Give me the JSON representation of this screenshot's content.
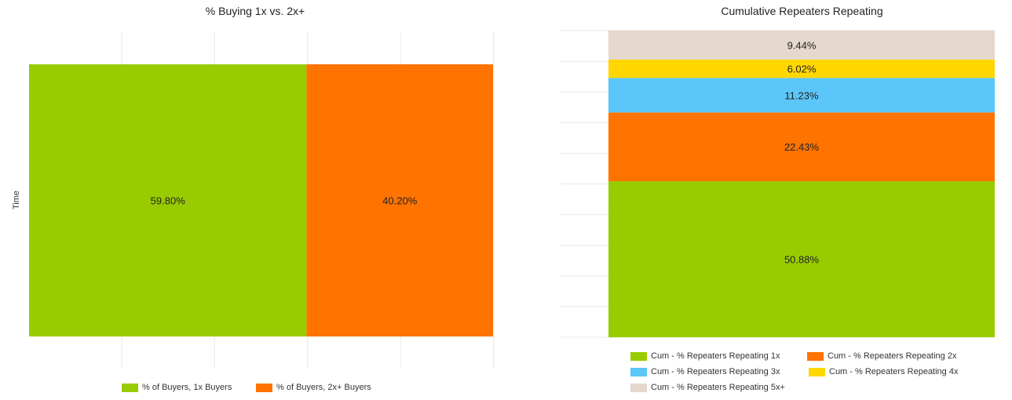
{
  "chart_data": [
    {
      "type": "bar",
      "orientation": "horizontal-stacked-100",
      "title": "% Buying 1x vs. 2x+",
      "ylabel": "Time",
      "grid": true,
      "legend_position": "bottom",
      "series": [
        {
          "name": "% of Buyers, 1x Buyers",
          "value": 59.8,
          "label": "59.80%",
          "color": "#99cc00"
        },
        {
          "name": "% of Buyers, 2x+ Buyers",
          "value": 40.2,
          "label": "40.20%",
          "color": "#ff7300"
        }
      ]
    },
    {
      "type": "bar",
      "orientation": "vertical-stacked-100",
      "title": "Cumulative Repeaters Repeating",
      "grid": true,
      "legend_position": "bottom",
      "series": [
        {
          "name": "Cum - % Repeaters Repeating 1x",
          "value": 50.88,
          "label": "50.88%",
          "color": "#99cc00"
        },
        {
          "name": "Cum - % Repeaters Repeating 2x",
          "value": 22.43,
          "label": "22.43%",
          "color": "#ff7300"
        },
        {
          "name": "Cum - % Repeaters Repeating 3x",
          "value": 11.23,
          "label": "11.23%",
          "color": "#5bc6f8"
        },
        {
          "name": "Cum - % Repeaters Repeating 4x",
          "value": 6.02,
          "label": "6.02%",
          "color": "#ffd700"
        },
        {
          "name": "Cum - % Repeaters Repeating 5x+",
          "value": 9.44,
          "label": "9.44%",
          "color": "#e5d8cc"
        }
      ]
    }
  ]
}
